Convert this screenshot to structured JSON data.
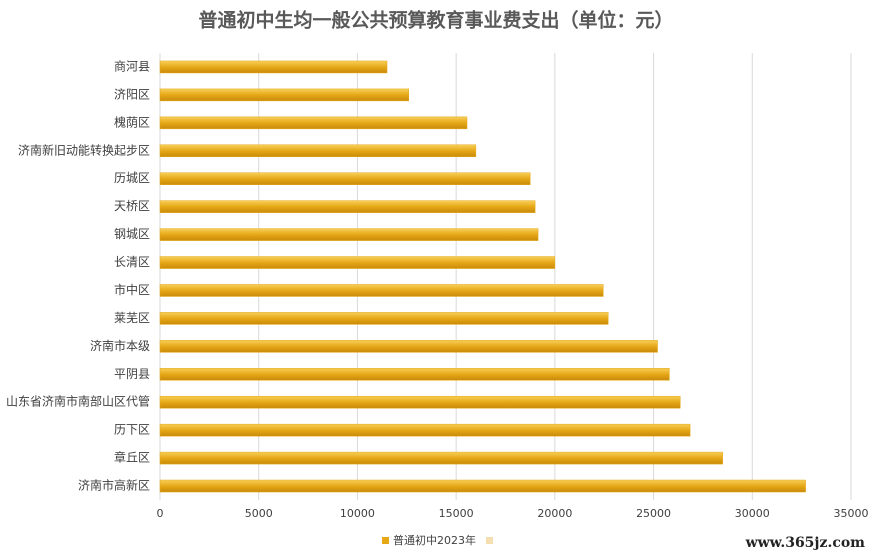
{
  "chart_data": {
    "type": "bar",
    "orientation": "horizontal",
    "title": "普通初中生均一般公共预算教育事业费支出（单位：元）",
    "categories": [
      "商河县",
      "济阳区",
      "槐荫区",
      "济南新旧动能转换起步区",
      "历城区",
      "天桥区",
      "钢城区",
      "长清区",
      "市中区",
      "莱芜区",
      "济南市本级",
      "平阴县",
      "山东省济南市南部山区代管",
      "历下区",
      "章丘区",
      "济南市高新区"
    ],
    "series": [
      {
        "name": "普通初中2023年",
        "color": "#e6a817",
        "values": [
          11500,
          12600,
          15550,
          16000,
          18750,
          19000,
          19150,
          20000,
          22450,
          22700,
          25200,
          25800,
          26350,
          26850,
          28500,
          32700
        ]
      }
    ],
    "xlim": [
      0,
      35000
    ],
    "xticks": [
      0,
      5000,
      10000,
      15000,
      20000,
      25000,
      30000,
      35000
    ],
    "grid": true,
    "legend": "bottom",
    "watermark": "www.365jz.com"
  }
}
